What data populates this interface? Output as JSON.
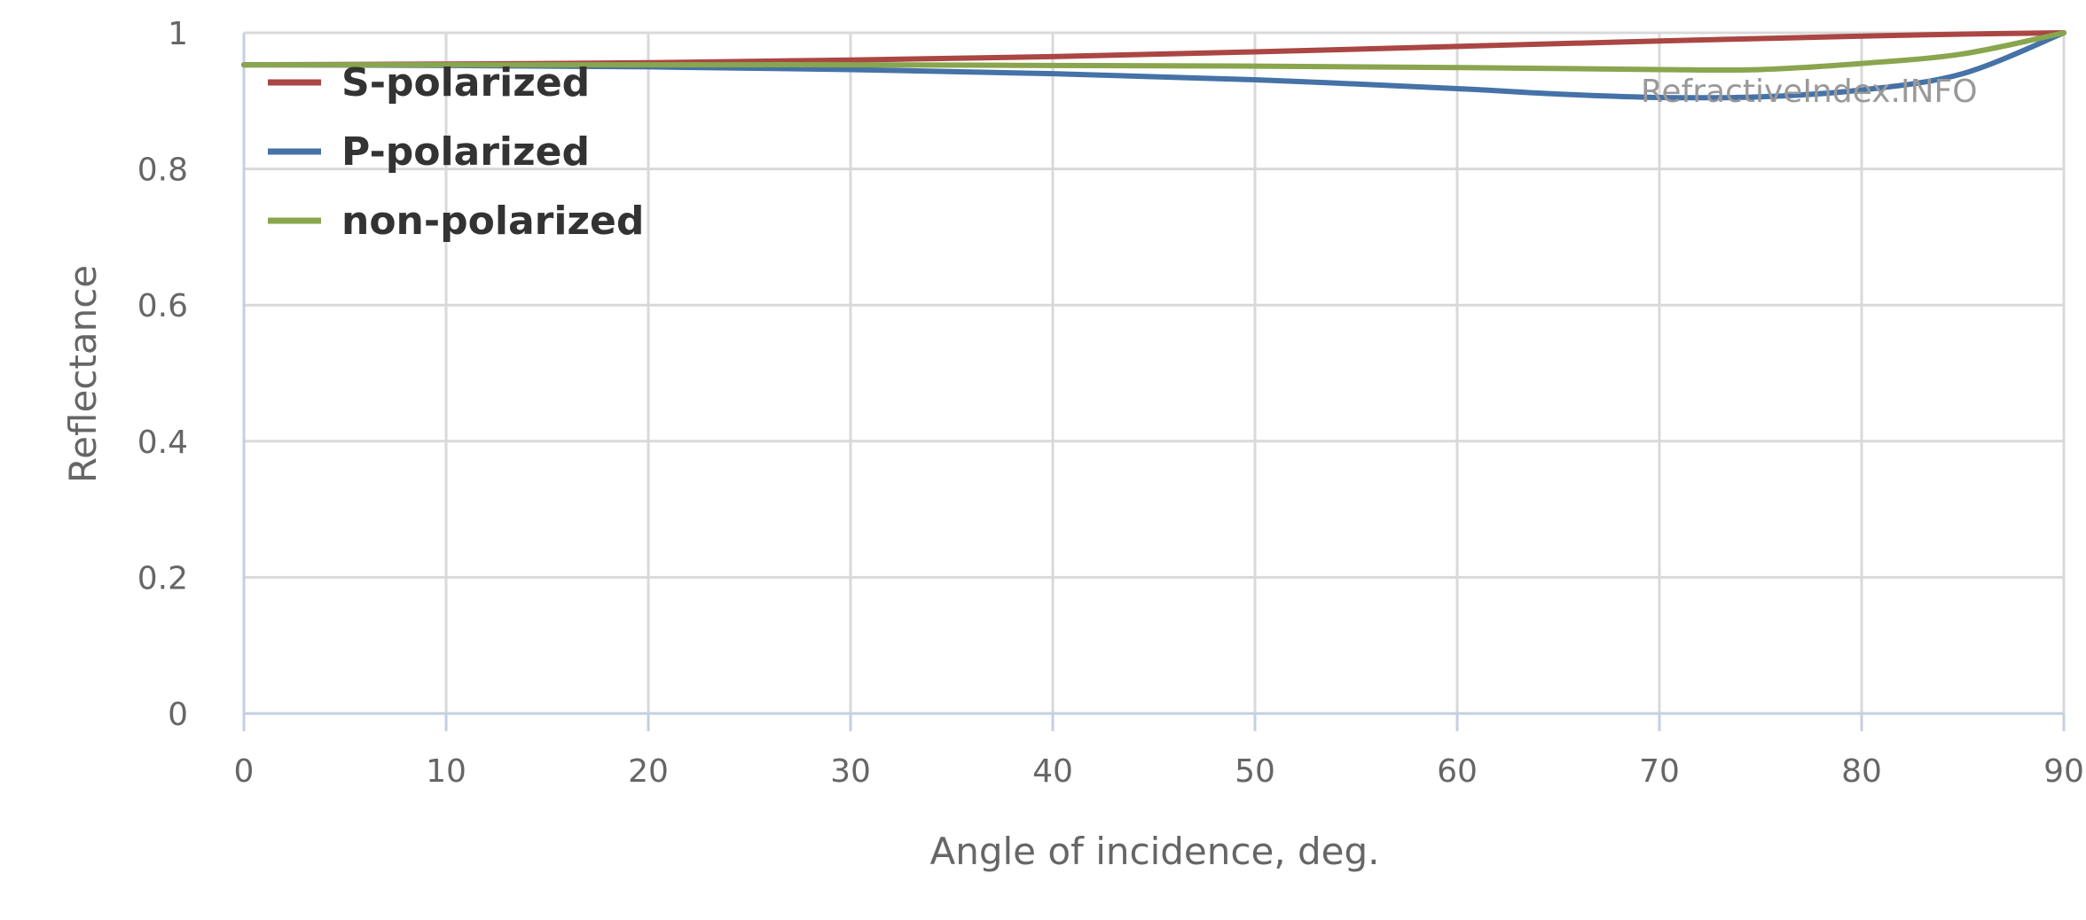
{
  "chart_data": {
    "type": "line",
    "xlabel": "Angle of incidence, deg.",
    "ylabel": "Reflectance",
    "xlim": [
      0,
      90
    ],
    "ylim": [
      0,
      1
    ],
    "xticks": [
      "0",
      "10",
      "20",
      "30",
      "40",
      "50",
      "60",
      "70",
      "80",
      "90"
    ],
    "yticks": [
      "0",
      "0.2",
      "0.4",
      "0.6",
      "0.8",
      "1"
    ],
    "grid": true,
    "legend_position": "top-left",
    "credit": "RefractiveIndex.INFO",
    "series": [
      {
        "name": "S-polarized",
        "color": "#aa4643",
        "x": [
          0,
          10,
          20,
          30,
          40,
          50,
          60,
          70,
          80,
          85,
          90
        ],
        "y": [
          0.953,
          0.954,
          0.956,
          0.96,
          0.965,
          0.972,
          0.98,
          0.988,
          0.995,
          0.998,
          1.0
        ]
      },
      {
        "name": "P-polarized",
        "color": "#4572a7",
        "x": [
          0,
          10,
          20,
          30,
          40,
          50,
          60,
          65,
          70,
          75,
          80,
          85,
          90
        ],
        "y": [
          0.953,
          0.952,
          0.95,
          0.946,
          0.94,
          0.931,
          0.918,
          0.91,
          0.905,
          0.906,
          0.916,
          0.94,
          1.0
        ]
      },
      {
        "name": "non-polarized",
        "color": "#89a54e",
        "x": [
          0,
          10,
          20,
          30,
          40,
          50,
          60,
          70,
          75,
          80,
          85,
          90
        ],
        "y": [
          0.953,
          0.953,
          0.953,
          0.953,
          0.952,
          0.951,
          0.949,
          0.946,
          0.946,
          0.955,
          0.969,
          1.0
        ]
      }
    ]
  }
}
